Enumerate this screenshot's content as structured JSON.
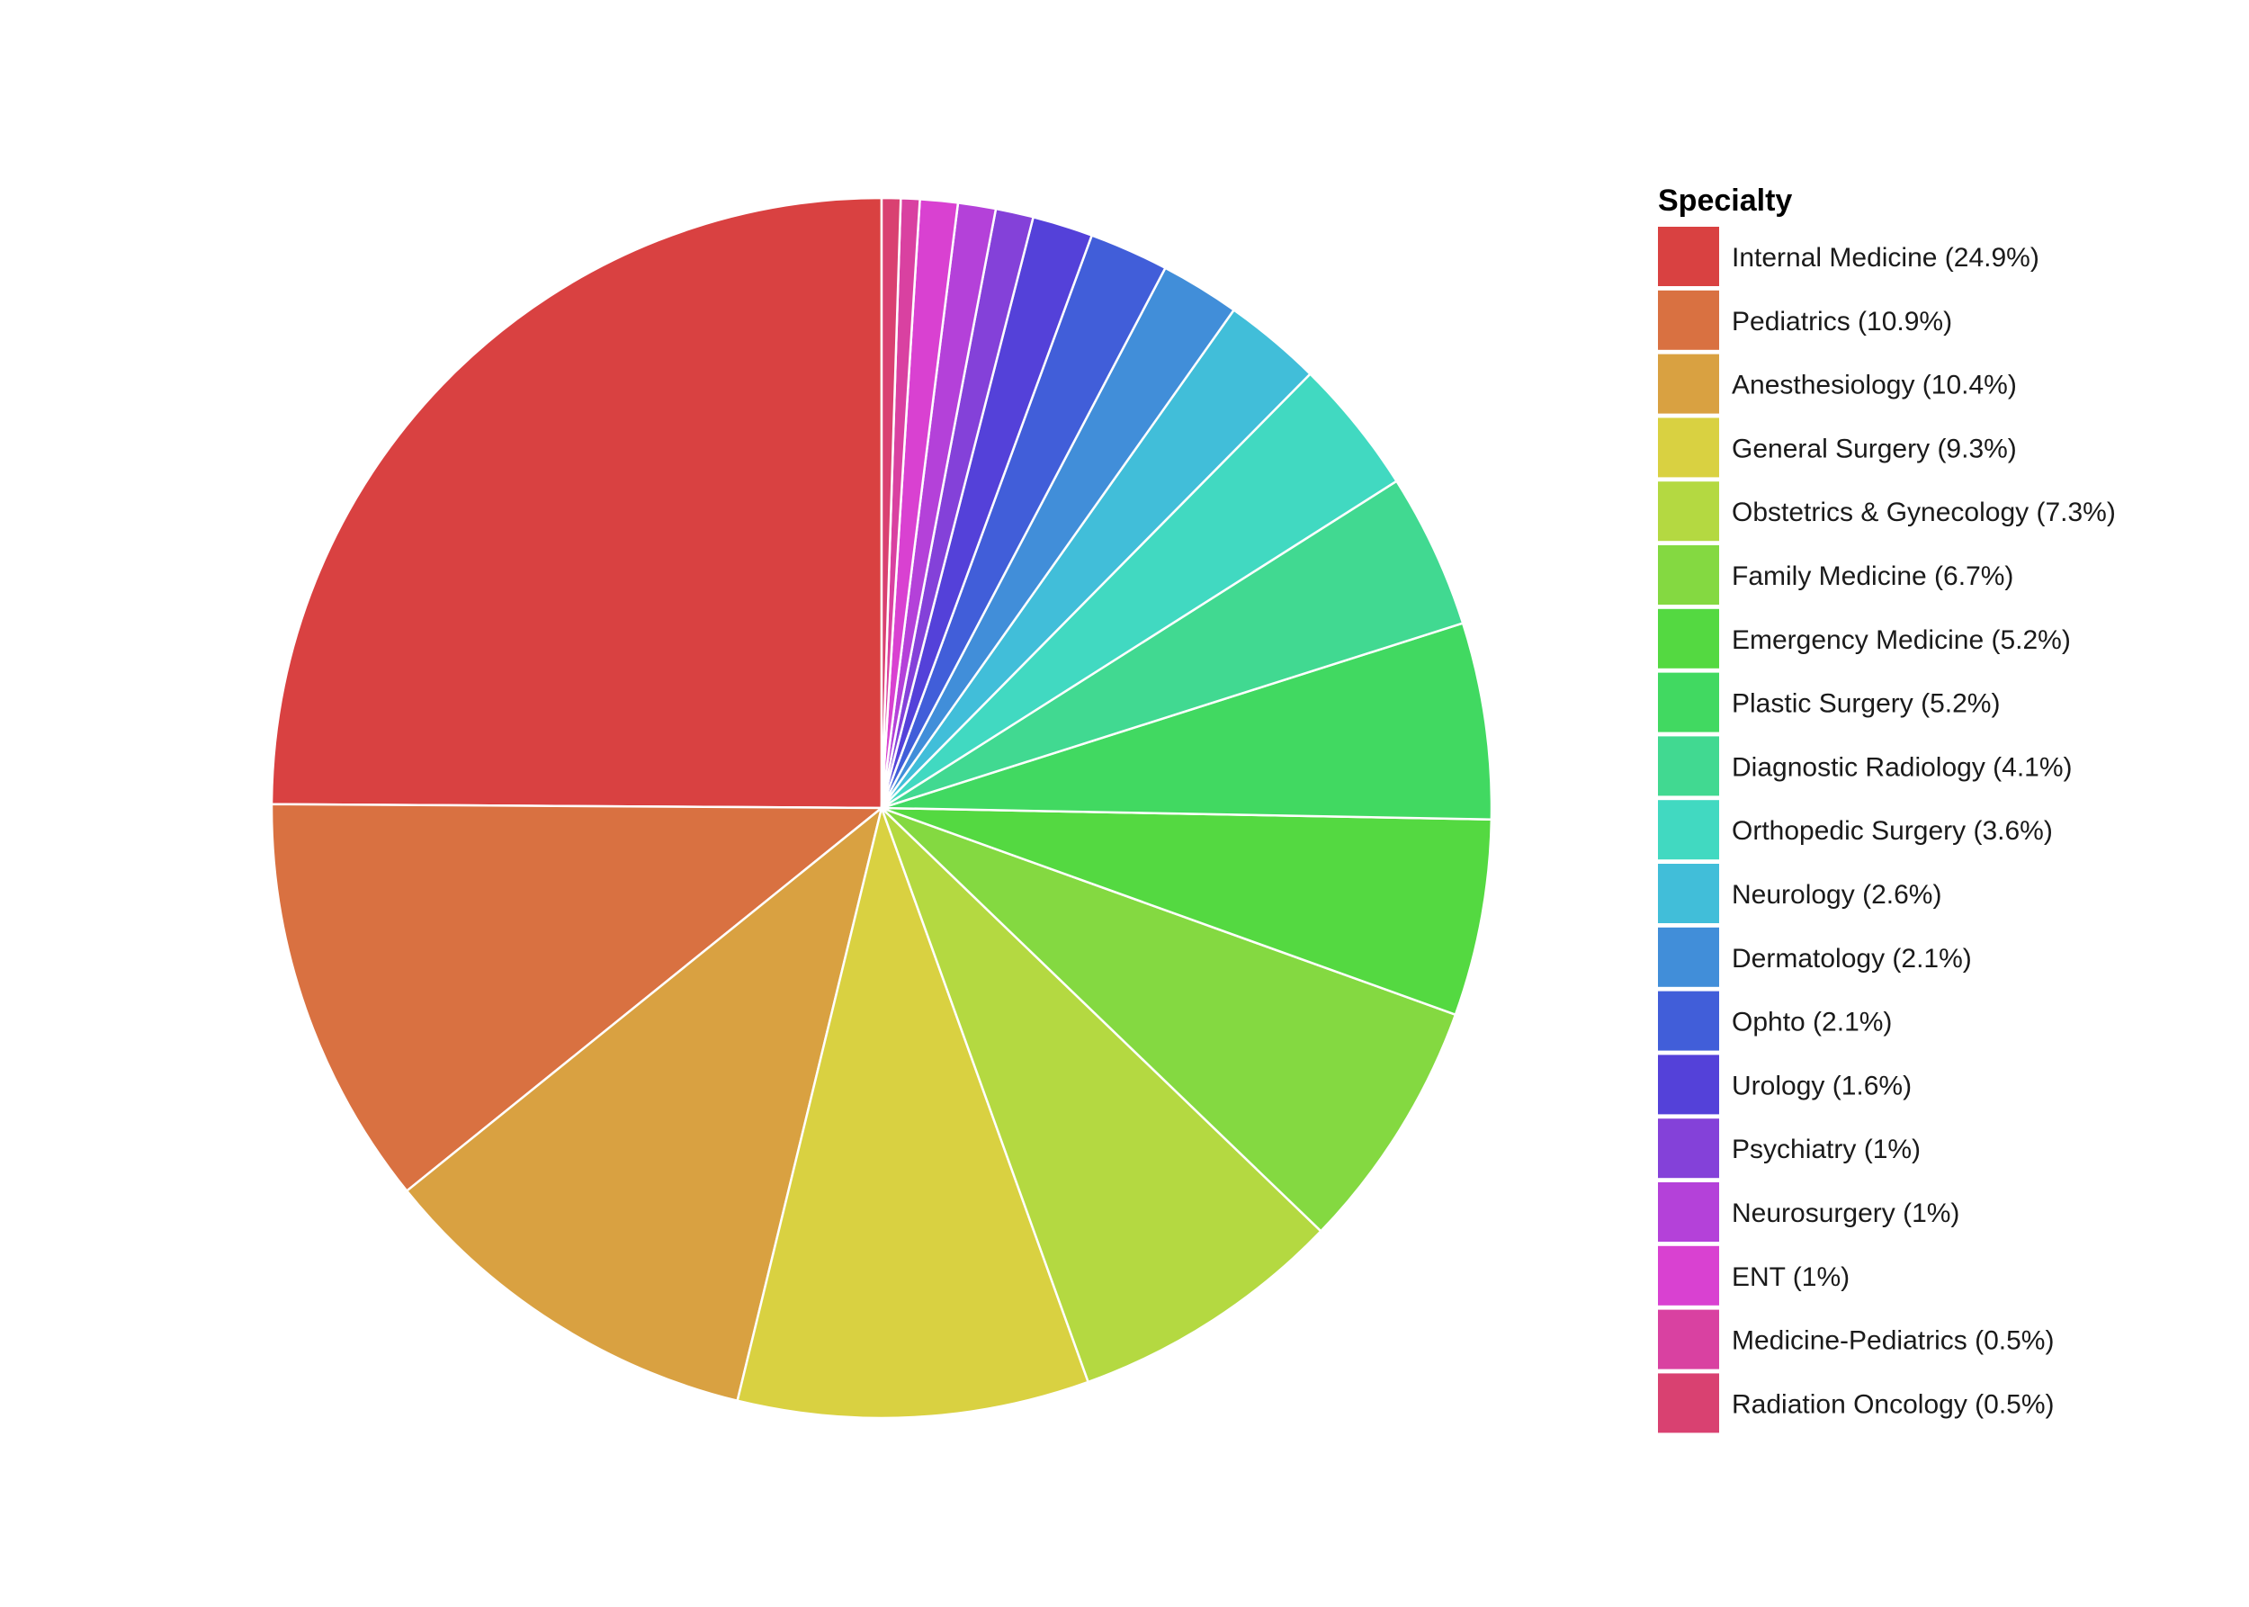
{
  "chart_data": {
    "type": "pie",
    "legend_title": "Specialty",
    "legend_position": "right",
    "start": "12 o'clock",
    "direction": "counterclockwise",
    "slices": [
      {
        "label": "Internal Medicine (24.9%)",
        "value": 24.9,
        "color": "#D94141"
      },
      {
        "label": "Pediatrics (10.9%)",
        "value": 10.9,
        "color": "#D97141"
      },
      {
        "label": "Anesthesiology (10.4%)",
        "value": 10.4,
        "color": "#D9A141"
      },
      {
        "label": "General Surgery (9.3%)",
        "value": 9.3,
        "color": "#D9D141"
      },
      {
        "label": "Obstetrics & Gynecology (7.3%)",
        "value": 7.3,
        "color": "#B4D941"
      },
      {
        "label": "Family Medicine (6.7%)",
        "value": 6.7,
        "color": "#84D941"
      },
      {
        "label": "Emergency Medicine (5.2%)",
        "value": 5.2,
        "color": "#54D941"
      },
      {
        "label": "Plastic Surgery (5.2%)",
        "value": 5.2,
        "color": "#41D961"
      },
      {
        "label": "Diagnostic Radiology (4.1%)",
        "value": 4.1,
        "color": "#41D991"
      },
      {
        "label": "Orthopedic Surgery (3.6%)",
        "value": 3.6,
        "color": "#41D9C1"
      },
      {
        "label": "Neurology (2.6%)",
        "value": 2.6,
        "color": "#41BED9"
      },
      {
        "label": "Dermatology (2.1%)",
        "value": 2.1,
        "color": "#418ED9"
      },
      {
        "label": "Ophto (2.1%)",
        "value": 2.1,
        "color": "#415ED9"
      },
      {
        "label": "Urology (1.6%)",
        "value": 1.6,
        "color": "#5441D9"
      },
      {
        "label": "Psychiatry (1%)",
        "value": 1.0,
        "color": "#8441D9"
      },
      {
        "label": "Neurosurgery (1%)",
        "value": 1.0,
        "color": "#B441D9"
      },
      {
        "label": "ENT (1%)",
        "value": 1.0,
        "color": "#D941D1"
      },
      {
        "label": "Medicine-Pediatrics (0.5%)",
        "value": 0.5,
        "color": "#D941A1"
      },
      {
        "label": "Radiation Oncology (0.5%)",
        "value": 0.5,
        "color": "#D94171"
      }
    ]
  }
}
